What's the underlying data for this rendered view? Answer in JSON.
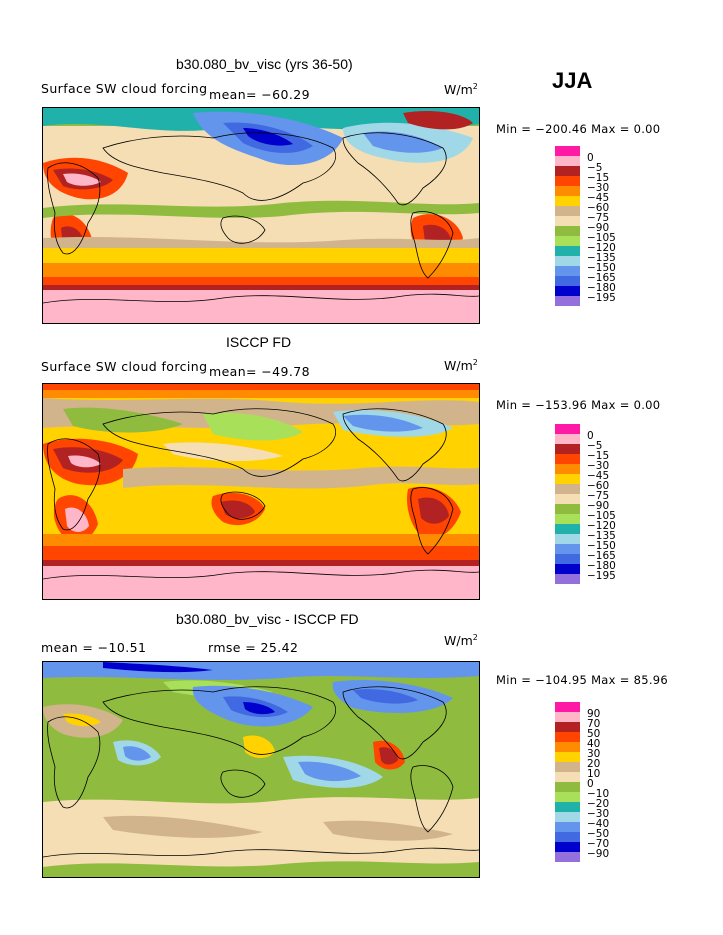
{
  "season": "JJA",
  "panels": [
    {
      "title": "b30.080_bv_visc (yrs 36-50)",
      "subtitle": "Surface SW cloud forcing",
      "mean_text": "mean= −60.29",
      "units": "W/m",
      "units_sup": "2",
      "minmax": "Min = −200.46 Max =    0.00",
      "legend_labels": [
        "0",
        "−5",
        "−15",
        "−30",
        "−45",
        "−60",
        "−75",
        "−90",
        "−105",
        "−120",
        "−135",
        "−150",
        "−165",
        "−180",
        "−195"
      ],
      "legend_colors": [
        "#ff1aa6",
        "#ffb6c8",
        "#b22222",
        "#ff4500",
        "#ff8c00",
        "#ffd200",
        "#d2b48c",
        "#f5deb3",
        "#8fbc3f",
        "#a8e05a",
        "#20b2aa",
        "#a0d8e8",
        "#6495ed",
        "#4169e1",
        "#0000cd",
        "#9370db"
      ]
    },
    {
      "title": "ISCCP FD",
      "subtitle": "Surface SW cloud forcing",
      "mean_text": "mean= −49.78",
      "units": "W/m",
      "units_sup": "2",
      "minmax": "Min = −153.96 Max =    0.00",
      "legend_labels": [
        "0",
        "−5",
        "−15",
        "−30",
        "−45",
        "−60",
        "−75",
        "−90",
        "−105",
        "−120",
        "−135",
        "−150",
        "−165",
        "−180",
        "−195"
      ],
      "legend_colors": [
        "#ff1aa6",
        "#ffb6c8",
        "#b22222",
        "#ff4500",
        "#ff8c00",
        "#ffd200",
        "#d2b48c",
        "#f5deb3",
        "#8fbc3f",
        "#a8e05a",
        "#20b2aa",
        "#a0d8e8",
        "#6495ed",
        "#4169e1",
        "#0000cd",
        "#9370db"
      ]
    },
    {
      "title": "b30.080_bv_visc - ISCCP FD",
      "mean_text": "mean = −10.51",
      "rmse_text": "rmse =  25.42",
      "units": "W/m",
      "units_sup": "2",
      "minmax": "Min = −104.95 Max =   85.96",
      "legend_labels": [
        "90",
        "70",
        "50",
        "40",
        "30",
        "20",
        "10",
        "0",
        "−10",
        "−20",
        "−30",
        "−40",
        "−50",
        "−70",
        "−90"
      ],
      "legend_colors": [
        "#ff1aa6",
        "#ffb6c8",
        "#b22222",
        "#ff4500",
        "#ff8c00",
        "#ffd200",
        "#d2b48c",
        "#f5deb3",
        "#8fbc3f",
        "#a8e05a",
        "#20b2aa",
        "#a0d8e8",
        "#6495ed",
        "#4169e1",
        "#0000cd",
        "#9370db"
      ]
    }
  ]
}
